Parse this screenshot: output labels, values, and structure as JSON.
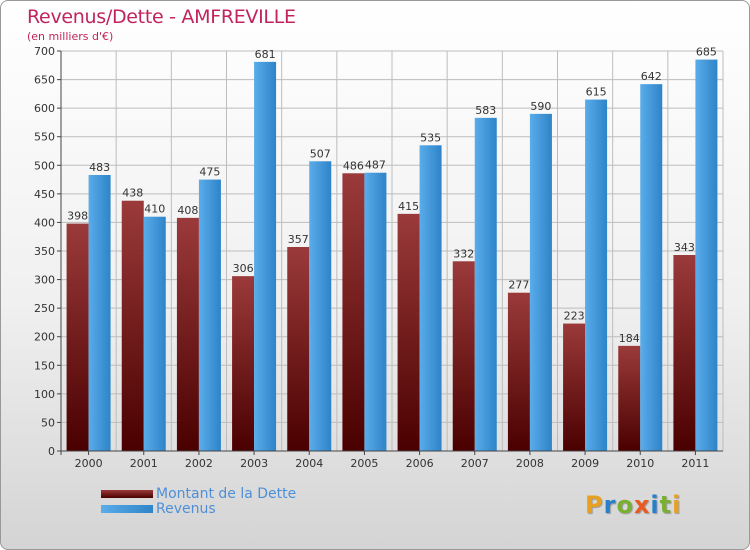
{
  "colors": {
    "title": "#c0245c",
    "legend_text": "#4f8fd8",
    "dette_light": "#9b3a3a",
    "dette_dark": "#4a0000",
    "revenus_light": "#5aacea",
    "revenus_dark": "#2e84c8",
    "grid": "#bdbdbd",
    "axis_text": "#333333",
    "label_text": "#333333",
    "logo_letters": [
      "#e8a020",
      "#2a80c8",
      "#7ab030",
      "#e85a20",
      "#2a80c8",
      "#7ab030"
    ]
  },
  "logo": {
    "text": "Proxiti",
    "icon": "proxiti-logo"
  },
  "chart_data": {
    "type": "bar",
    "title": "Revenus/Dette - AMFREVILLE",
    "subtitle": "(en milliers d'€)",
    "xlabel": "",
    "ylabel": "",
    "ylim": [
      0,
      700
    ],
    "ytick_step": 50,
    "ytick_labels": [
      "0",
      "50",
      "100",
      "150",
      "200",
      "250",
      "300",
      "350",
      "400",
      "450",
      "500",
      "550",
      "600",
      "650",
      "700"
    ],
    "grid": true,
    "legend_position": "bottom-left",
    "categories": [
      "2000",
      "2001",
      "2002",
      "2003",
      "2004",
      "2005",
      "2006",
      "2007",
      "2008",
      "2009",
      "2010",
      "2011"
    ],
    "series": [
      {
        "name": "Montant de la Dette",
        "values": [
          398,
          438,
          408,
          306,
          357,
          486,
          415,
          332,
          277,
          223,
          184,
          343
        ]
      },
      {
        "name": "Revenus",
        "values": [
          483,
          410,
          475,
          681,
          507,
          487,
          535,
          583,
          590,
          615,
          642,
          685
        ]
      }
    ]
  }
}
